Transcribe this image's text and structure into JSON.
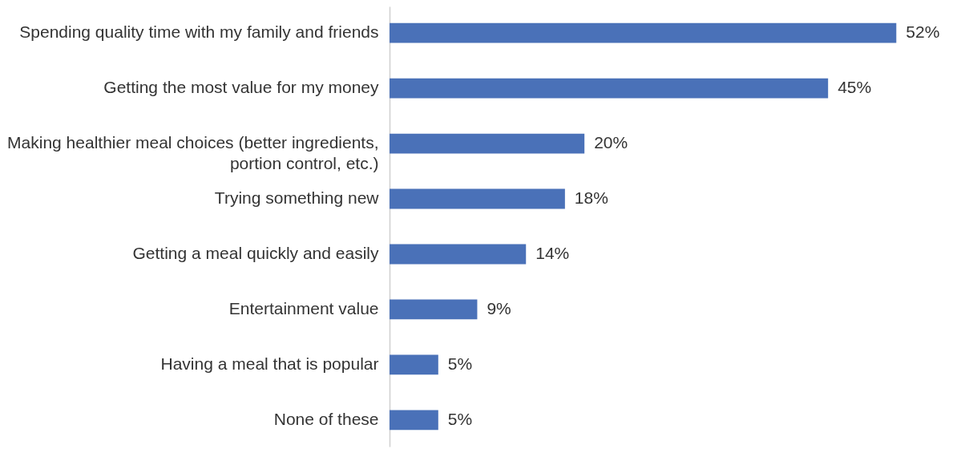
{
  "chart_data": {
    "type": "bar",
    "orientation": "horizontal",
    "categories": [
      "Spending quality time with my family and friends",
      "Getting the most value for my money",
      "Making healthier meal choices (better ingredients, portion control, etc.)",
      "Trying something new",
      "Getting a meal quickly and easily",
      "Entertainment value",
      "Having a meal that is popular",
      "None of these"
    ],
    "values": [
      52,
      45,
      20,
      18,
      14,
      9,
      5,
      5
    ],
    "value_labels": [
      "52%",
      "45%",
      "20%",
      "18%",
      "14%",
      "9%",
      "5%",
      "5%"
    ],
    "color": "#4a71b8"
  }
}
